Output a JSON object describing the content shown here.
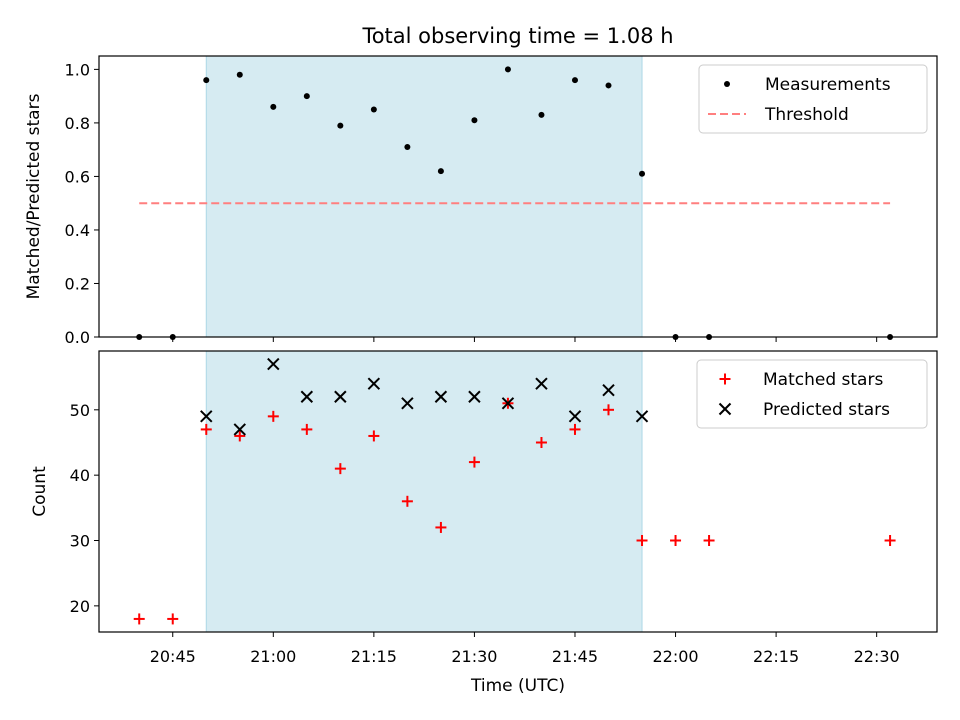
{
  "title": "Total observing time = 1.08 h",
  "xlabel": "Time (UTC)",
  "colors": {
    "shade": "#add8e6",
    "measurement": "#000000",
    "threshold": "#ff7f7f",
    "matched": "#ff0000",
    "predicted": "#000000"
  },
  "chart_data": [
    {
      "type": "scatter",
      "panel": "top",
      "ylabel": "Matched/Predicted stars",
      "xlim": [
        "20:34",
        "22:39"
      ],
      "ylim": [
        0,
        1.05
      ],
      "xticks": [
        "20:45",
        "21:00",
        "21:15",
        "21:30",
        "21:45",
        "22:00",
        "22:15",
        "22:30"
      ],
      "yticks": [
        "0.0",
        "0.2",
        "0.4",
        "0.6",
        "0.8",
        "1.0"
      ],
      "shaded_region": [
        "20:50",
        "21:55"
      ],
      "legend_position": "upper right",
      "series": [
        {
          "name": "Measurements",
          "marker": "dot",
          "x": [
            "20:40",
            "20:45",
            "20:50",
            "20:55",
            "21:00",
            "21:05",
            "21:10",
            "21:15",
            "21:20",
            "21:25",
            "21:30",
            "21:35",
            "21:40",
            "21:45",
            "21:50",
            "21:55",
            "22:00",
            "22:05",
            "22:32"
          ],
          "y": [
            0,
            0,
            0.96,
            0.98,
            0.86,
            0.9,
            0.79,
            0.85,
            0.71,
            0.62,
            0.81,
            1.0,
            0.83,
            0.96,
            0.94,
            0.61,
            0,
            0,
            0
          ]
        },
        {
          "name": "Threshold",
          "marker": "dashed-line",
          "x": [
            "20:40",
            "22:32"
          ],
          "y": [
            0.5,
            0.5
          ]
        }
      ]
    },
    {
      "type": "scatter",
      "panel": "bottom",
      "ylabel": "Count",
      "xlim": [
        "20:34",
        "22:39"
      ],
      "ylim": [
        16,
        59
      ],
      "xticks": [
        "20:45",
        "21:00",
        "21:15",
        "21:30",
        "21:45",
        "22:00",
        "22:15",
        "22:30"
      ],
      "yticks": [
        "20",
        "30",
        "40",
        "50"
      ],
      "shaded_region": [
        "20:50",
        "21:55"
      ],
      "legend_position": "upper right",
      "series": [
        {
          "name": "Matched stars",
          "marker": "plus",
          "x": [
            "20:40",
            "20:45",
            "20:50",
            "20:55",
            "21:00",
            "21:05",
            "21:10",
            "21:15",
            "21:20",
            "21:25",
            "21:30",
            "21:35",
            "21:40",
            "21:45",
            "21:50",
            "21:55",
            "22:00",
            "22:05",
            "22:32"
          ],
          "y": [
            18,
            18,
            47,
            46,
            49,
            47,
            41,
            46,
            36,
            32,
            42,
            51,
            45,
            47,
            50,
            30,
            30,
            30,
            30
          ]
        },
        {
          "name": "Predicted stars",
          "marker": "x",
          "x": [
            "20:50",
            "20:55",
            "21:00",
            "21:05",
            "21:10",
            "21:15",
            "21:20",
            "21:25",
            "21:30",
            "21:35",
            "21:40",
            "21:45",
            "21:50",
            "21:55"
          ],
          "y": [
            49,
            47,
            57,
            52,
            52,
            54,
            51,
            52,
            52,
            51,
            54,
            49,
            53,
            49
          ]
        }
      ]
    }
  ]
}
